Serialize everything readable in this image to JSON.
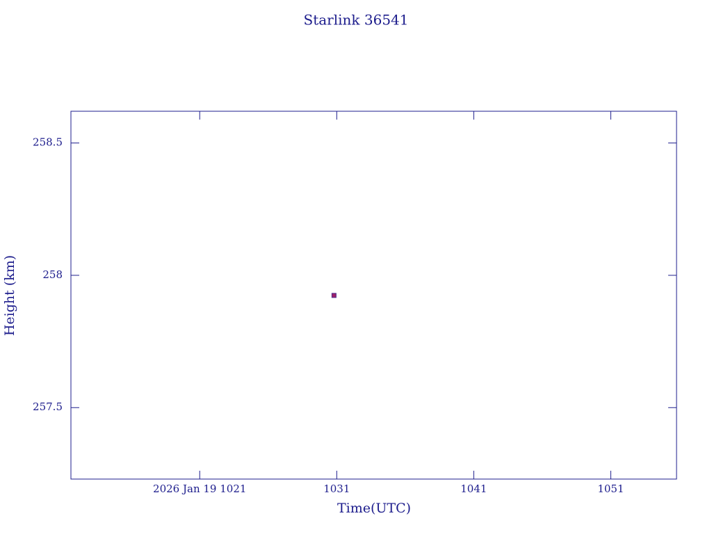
{
  "chart_data": {
    "type": "scatter",
    "title": "Starlink 36541",
    "x_label": "Time(UTC)",
    "y_label": "Height (km)",
    "series": [
      {
        "name": "Starlink 36541",
        "color": "#a0206a",
        "x": [
          1030.8
        ],
        "values": [
          257.924
        ]
      }
    ],
    "xlim": [
      1011.6,
      1055.8
    ],
    "xticks": [
      {
        "value": 1021,
        "label": "2026 Jan 19  1021"
      },
      1031,
      1041,
      1051
    ],
    "ylim": [
      257.23,
      258.62
    ],
    "yticks": [
      257.5,
      258,
      258.5
    ],
    "grid": false
  }
}
